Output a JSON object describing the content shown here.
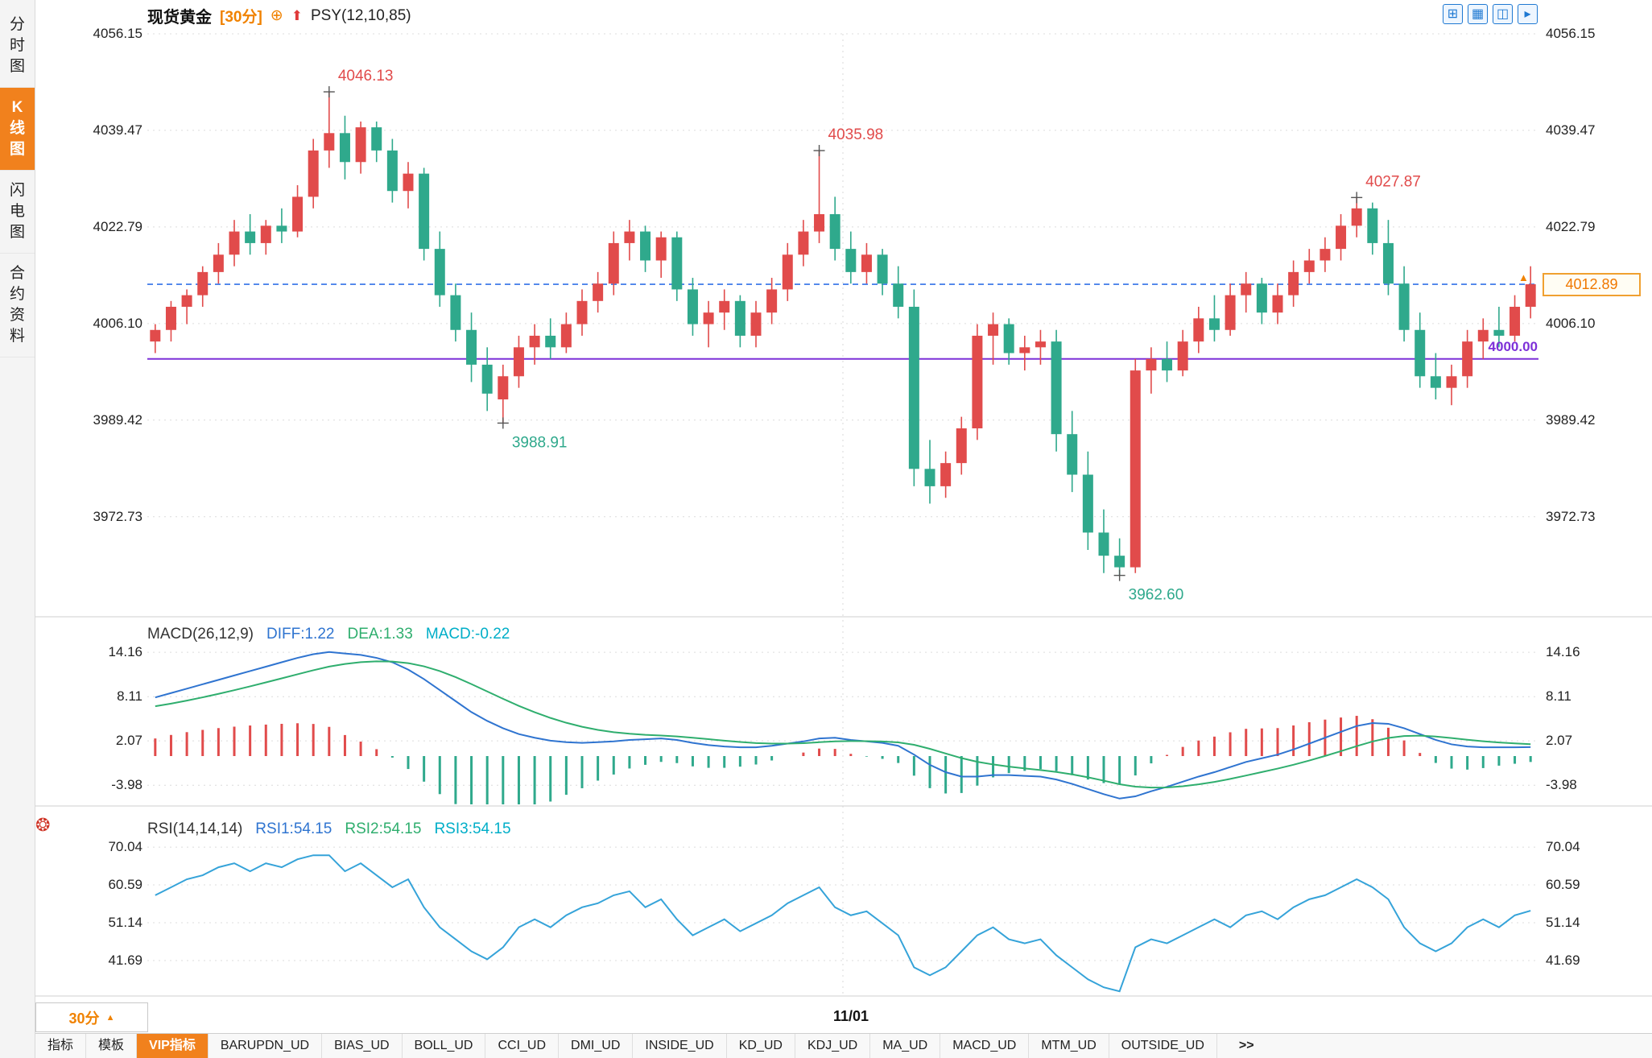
{
  "header": {
    "symbol": "现货黄金",
    "period": "[30分]",
    "plus_icon": "⊕",
    "arrow_icon": "⬆",
    "indicator": "PSY(12,10,85)",
    "layout_icons": [
      {
        "name": "compare-layout-icon",
        "glyph": "⊞"
      },
      {
        "name": "grid-layout-icon",
        "glyph": "▦"
      },
      {
        "name": "pane-layout-icon",
        "glyph": "◫"
      },
      {
        "name": "next-layout-icon",
        "glyph": "▸"
      }
    ]
  },
  "sidebar": {
    "tabs": [
      {
        "label": "分时图",
        "active": false
      },
      {
        "label": "K线图",
        "active": true
      },
      {
        "label": "闪电图",
        "active": false
      },
      {
        "label": "合约资料",
        "active": false
      }
    ]
  },
  "lines": {
    "current_price": "4012.89",
    "level": "4000.00"
  },
  "macd": {
    "title": "MACD(26,12,9)",
    "diff_label": "DIFF:1.22",
    "dea_label": "DEA:1.33",
    "macd_label": "MACD:-0.22"
  },
  "rsi": {
    "title": "RSI(14,14,14)",
    "rsi1_label": "RSI1:54.15",
    "rsi2_label": "RSI2:54.15",
    "rsi3_label": "RSI3:54.15"
  },
  "bottom": {
    "period": "30分",
    "arrow_glyph": "▲"
  },
  "icons": {
    "settings_glyph": "❂"
  },
  "tabbar": {
    "items": [
      "指标",
      "模板",
      "VIP指标",
      "BARUPDN_UD",
      "BIAS_UD",
      "BOLL_UD",
      "CCI_UD",
      "DMI_UD",
      "INSIDE_UD",
      "KD_UD",
      "KDJ_UD",
      "MA_UD",
      "MACD_UD",
      "MTM_UD",
      "OUTSIDE_UD",
      ">>"
    ],
    "active_index": 2
  },
  "colors": {
    "up": "#e14b4b",
    "down": "#2fa98c",
    "accent_orange": "#f08200",
    "current_price_line": "#3070e8",
    "level_line": "#7d30d8",
    "macd_diff": "#2f74d0",
    "macd_dea": "#2fae6e",
    "macd_value": "#00aec8",
    "rsi_line": "#35a3d9"
  },
  "chart_data": {
    "type": "candlestick",
    "symbol": "现货黄金",
    "interval": "30分",
    "overlay_indicator": "PSY(12,10,85)",
    "price_axis_ticks": [
      4056.15,
      4039.47,
      4022.79,
      4006.1,
      3989.42,
      3972.73
    ],
    "current_price": 4012.89,
    "horizontal_level": 4000.0,
    "x_labels": [
      {
        "text": "11/01",
        "fraction": 0.5
      }
    ],
    "marked_points": [
      {
        "index": 11,
        "value": 4046.13,
        "kind": "high"
      },
      {
        "index": 22,
        "value": 3988.91,
        "kind": "low"
      },
      {
        "index": 42,
        "value": 4035.98,
        "kind": "high"
      },
      {
        "index": 61,
        "value": 3962.6,
        "kind": "low"
      },
      {
        "index": 76,
        "value": 4027.87,
        "kind": "high"
      }
    ],
    "candles": [
      [
        4003,
        4006,
        4001,
        4005
      ],
      [
        4005,
        4010,
        4003,
        4009
      ],
      [
        4009,
        4012,
        4006,
        4011
      ],
      [
        4011,
        4016,
        4009,
        4015
      ],
      [
        4015,
        4020,
        4013,
        4018
      ],
      [
        4018,
        4024,
        4016,
        4022
      ],
      [
        4022,
        4025,
        4018,
        4020
      ],
      [
        4020,
        4024,
        4018,
        4023
      ],
      [
        4023,
        4026,
        4020,
        4022
      ],
      [
        4022,
        4030,
        4021,
        4028
      ],
      [
        4028,
        4038,
        4026,
        4036
      ],
      [
        4036,
        4046.13,
        4033,
        4039
      ],
      [
        4039,
        4042,
        4031,
        4034
      ],
      [
        4034,
        4041,
        4032,
        4040
      ],
      [
        4040,
        4041,
        4034,
        4036
      ],
      [
        4036,
        4038,
        4027,
        4029
      ],
      [
        4029,
        4034,
        4026,
        4032
      ],
      [
        4032,
        4033,
        4017,
        4019
      ],
      [
        4019,
        4022,
        4009,
        4011
      ],
      [
        4011,
        4013,
        4003,
        4005
      ],
      [
        4005,
        4008,
        3996,
        3999
      ],
      [
        3999,
        4002,
        3991,
        3994
      ],
      [
        3993,
        3999,
        3988.91,
        3997
      ],
      [
        3997,
        4004,
        3995,
        4002
      ],
      [
        4002,
        4006,
        3999,
        4004
      ],
      [
        4004,
        4007,
        4000,
        4002
      ],
      [
        4002,
        4008,
        4001,
        4006
      ],
      [
        4006,
        4012,
        4004,
        4010
      ],
      [
        4010,
        4015,
        4008,
        4013
      ],
      [
        4013,
        4022,
        4011,
        4020
      ],
      [
        4020,
        4024,
        4017,
        4022
      ],
      [
        4022,
        4023,
        4015,
        4017
      ],
      [
        4017,
        4022,
        4014,
        4021
      ],
      [
        4021,
        4022,
        4010,
        4012
      ],
      [
        4012,
        4014,
        4004,
        4006
      ],
      [
        4006,
        4010,
        4002,
        4008
      ],
      [
        4008,
        4012,
        4005,
        4010
      ],
      [
        4010,
        4011,
        4002,
        4004
      ],
      [
        4004,
        4010,
        4002,
        4008
      ],
      [
        4008,
        4014,
        4006,
        4012
      ],
      [
        4012,
        4020,
        4010,
        4018
      ],
      [
        4018,
        4024,
        4016,
        4022
      ],
      [
        4022,
        4035.98,
        4020,
        4025
      ],
      [
        4025,
        4028,
        4017,
        4019
      ],
      [
        4019,
        4022,
        4013,
        4015
      ],
      [
        4015,
        4020,
        4013,
        4018
      ],
      [
        4018,
        4019,
        4011,
        4013
      ],
      [
        4013,
        4016,
        4007,
        4009
      ],
      [
        4009,
        4012,
        3978,
        3981
      ],
      [
        3981,
        3986,
        3975,
        3978
      ],
      [
        3978,
        3984,
        3976,
        3982
      ],
      [
        3982,
        3990,
        3980,
        3988
      ],
      [
        3988,
        4006,
        3986,
        4004
      ],
      [
        4004,
        4008,
        3999,
        4006
      ],
      [
        4006,
        4007,
        3999,
        4001
      ],
      [
        4001,
        4004,
        3998,
        4002
      ],
      [
        4002,
        4005,
        3999,
        4003
      ],
      [
        4003,
        4005,
        3984,
        3987
      ],
      [
        3987,
        3991,
        3977,
        3980
      ],
      [
        3980,
        3984,
        3967,
        3970
      ],
      [
        3970,
        3974,
        3963,
        3966
      ],
      [
        3966,
        3969,
        3962.6,
        3964
      ],
      [
        3964,
        4000,
        3963,
        3998
      ],
      [
        3998,
        4002,
        3994,
        4000
      ],
      [
        4000,
        4003,
        3996,
        3998
      ],
      [
        3998,
        4005,
        3997,
        4003
      ],
      [
        4003,
        4009,
        4001,
        4007
      ],
      [
        4007,
        4011,
        4003,
        4005
      ],
      [
        4005,
        4013,
        4004,
        4011
      ],
      [
        4011,
        4015,
        4008,
        4013
      ],
      [
        4013,
        4014,
        4006,
        4008
      ],
      [
        4008,
        4013,
        4006,
        4011
      ],
      [
        4011,
        4017,
        4009,
        4015
      ],
      [
        4015,
        4019,
        4013,
        4017
      ],
      [
        4017,
        4021,
        4015,
        4019
      ],
      [
        4019,
        4025,
        4017,
        4023
      ],
      [
        4023,
        4027.87,
        4021,
        4026
      ],
      [
        4026,
        4027,
        4018,
        4020
      ],
      [
        4020,
        4024,
        4011,
        4013
      ],
      [
        4013,
        4016,
        4003,
        4005
      ],
      [
        4005,
        4008,
        3995,
        3997
      ],
      [
        3997,
        4001,
        3993,
        3995
      ],
      [
        3995,
        3999,
        3992,
        3997
      ],
      [
        3997,
        4005,
        3995,
        4003
      ],
      [
        4003,
        4007,
        4000,
        4005
      ],
      [
        4005,
        4009,
        4002,
        4004
      ],
      [
        4004,
        4011,
        4003,
        4009
      ],
      [
        4009,
        4016,
        4007,
        4012.89
      ]
    ],
    "macd": {
      "params": [
        26,
        12,
        9
      ],
      "axis_ticks": [
        14.16,
        8.11,
        2.07,
        -3.98
      ],
      "current": {
        "diff": 1.22,
        "dea": 1.33,
        "macd": -0.22
      },
      "diff": [
        8.0,
        8.6,
        9.2,
        9.8,
        10.4,
        11.0,
        11.6,
        12.2,
        12.8,
        13.4,
        13.9,
        14.2,
        14.0,
        13.8,
        13.4,
        12.8,
        11.8,
        10.5,
        9.0,
        7.5,
        6.0,
        4.8,
        3.8,
        3.0,
        2.5,
        2.1,
        1.9,
        1.8,
        1.9,
        2.0,
        2.2,
        2.3,
        2.4,
        2.2,
        1.8,
        1.5,
        1.3,
        1.2,
        1.2,
        1.4,
        1.7,
        2.0,
        2.4,
        2.5,
        2.2,
        2.0,
        1.8,
        1.4,
        0.2,
        -1.2,
        -2.2,
        -2.8,
        -2.8,
        -2.6,
        -2.6,
        -2.7,
        -2.8,
        -3.2,
        -3.8,
        -4.5,
        -5.2,
        -5.8,
        -5.5,
        -4.8,
        -4.2,
        -3.5,
        -2.8,
        -2.2,
        -1.5,
        -0.8,
        -0.3,
        0.2,
        0.9,
        1.7,
        2.5,
        3.3,
        4.1,
        4.5,
        4.4,
        3.8,
        3.0,
        2.2,
        1.6,
        1.3,
        1.2,
        1.2,
        1.2,
        1.22
      ]
    },
    "rsi": {
      "params": [
        14,
        14,
        14
      ],
      "axis_ticks": [
        70.04,
        60.59,
        51.14,
        41.69
      ],
      "current": 54.15,
      "values": [
        58,
        60,
        62,
        63,
        65,
        66,
        64,
        66,
        65,
        67,
        68,
        68,
        64,
        66,
        63,
        60,
        62,
        55,
        50,
        47,
        44,
        42,
        45,
        50,
        52,
        50,
        53,
        55,
        56,
        58,
        59,
        55,
        57,
        52,
        48,
        50,
        52,
        49,
        51,
        53,
        56,
        58,
        60,
        55,
        53,
        54,
        51,
        48,
        40,
        38,
        40,
        44,
        48,
        50,
        47,
        46,
        47,
        43,
        40,
        37,
        35,
        34,
        45,
        47,
        46,
        48,
        50,
        52,
        50,
        53,
        54,
        52,
        55,
        57,
        58,
        60,
        62,
        60,
        57,
        50,
        46,
        44,
        46,
        50,
        52,
        50,
        53,
        54.15
      ]
    }
  }
}
